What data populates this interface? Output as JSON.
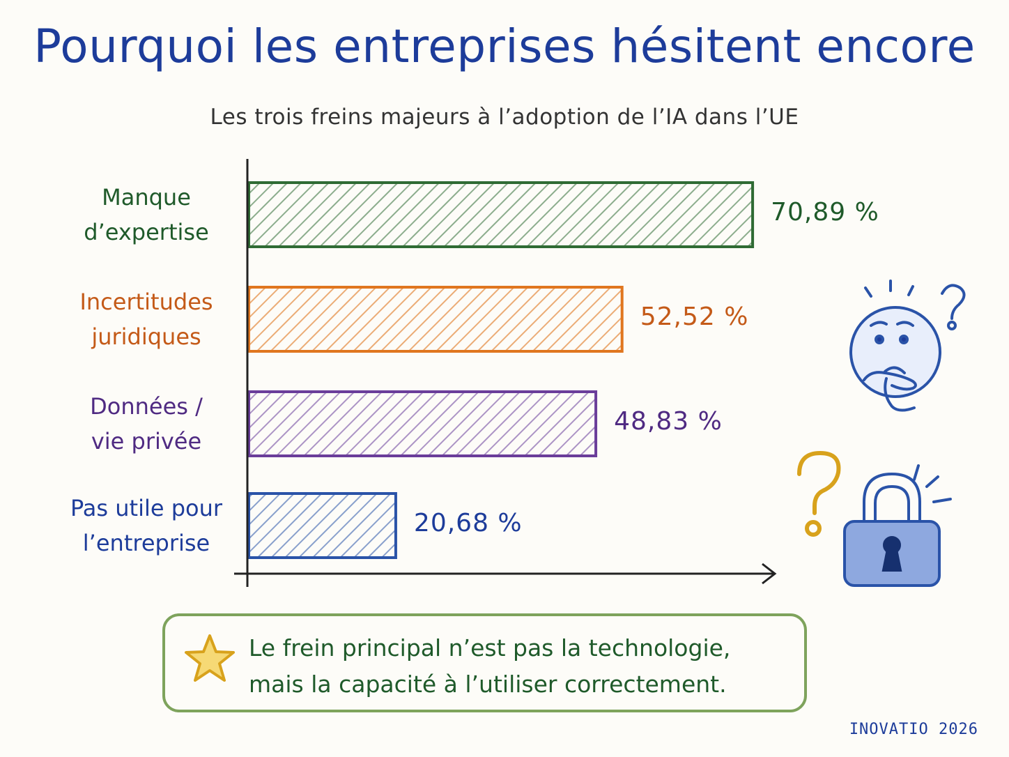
{
  "chart_data": {
    "type": "bar",
    "orientation": "horizontal",
    "title": "Pourquoi les entreprises hésitent encore",
    "subtitle": "Les trois freins majeurs à l’adoption de l’IA dans l’UE",
    "categories": [
      [
        "Manque",
        "d’expertise"
      ],
      [
        "Incertitudes",
        "juridiques"
      ],
      [
        "Données /",
        "vie privée"
      ],
      [
        "Pas utile pour",
        "l’entreprise"
      ]
    ],
    "values": [
      70.89,
      52.52,
      48.83,
      20.68
    ],
    "value_labels": [
      "70,89 %",
      "52,52 %",
      "48,83 %",
      "20,68 %"
    ],
    "colors": [
      "#2f6b34",
      "#e0761f",
      "#6a3d9a",
      "#2a53a8"
    ],
    "label_colors": [
      "#1f5a2a",
      "#c45a18",
      "#4f2a82",
      "#1d3c9a"
    ],
    "xlim": [
      0,
      100
    ]
  },
  "note": {
    "line1": "Le frein principal n’est pas la technologie,",
    "line2": "mais la capacité à l’utiliser correctement."
  },
  "footer": "INOVATIO 2026",
  "icons": [
    "thinking-face-icon",
    "question-mark-icon",
    "padlock-icon",
    "star-icon"
  ]
}
